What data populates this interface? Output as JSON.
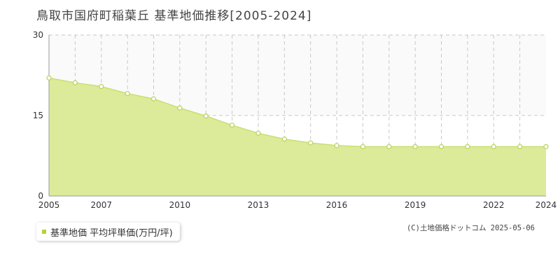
{
  "title": "鳥取市国府町稲葉丘 基準地価推移[2005-2024]",
  "legend_label": "基準地価 平均坪単価(万円/坪)",
  "copyright": "(C)土地価格ドットコム 2025-05-06",
  "colors": {
    "fill": "#dbeb99",
    "line": "#c8e070",
    "point_stroke": "#b6d35a",
    "upper_band": "#fafafa",
    "grid": "#c8c8c8",
    "axis": "#999999",
    "legend_swatch": "#b5d334"
  },
  "chart_data": {
    "type": "area",
    "title": "鳥取市国府町稲葉丘 基準地価推移[2005-2024]",
    "xlabel": "",
    "ylabel": "",
    "x": [
      2005,
      2006,
      2007,
      2008,
      2009,
      2010,
      2011,
      2012,
      2013,
      2014,
      2015,
      2016,
      2017,
      2018,
      2019,
      2020,
      2021,
      2022,
      2023,
      2024
    ],
    "x_tick_labels": [
      "2005",
      "2007",
      "2010",
      "2013",
      "2016",
      "2019",
      "2022",
      "2024"
    ],
    "x_tick_values": [
      2005,
      2007,
      2010,
      2013,
      2016,
      2019,
      2022,
      2024
    ],
    "y_tick_labels": [
      "0",
      "15",
      "30"
    ],
    "y_tick_values": [
      0,
      15,
      30
    ],
    "ylim": [
      0,
      30
    ],
    "xlim": [
      2005,
      2024
    ],
    "grid": true,
    "legend_position": "bottom-left",
    "series": [
      {
        "name": "基準地価 平均坪単価(万円/坪)",
        "values": [
          22.0,
          21.1,
          20.4,
          19.1,
          18.1,
          16.4,
          14.9,
          13.2,
          11.7,
          10.6,
          9.9,
          9.4,
          9.2,
          9.2,
          9.2,
          9.2,
          9.2,
          9.2,
          9.2,
          9.2
        ]
      }
    ]
  }
}
